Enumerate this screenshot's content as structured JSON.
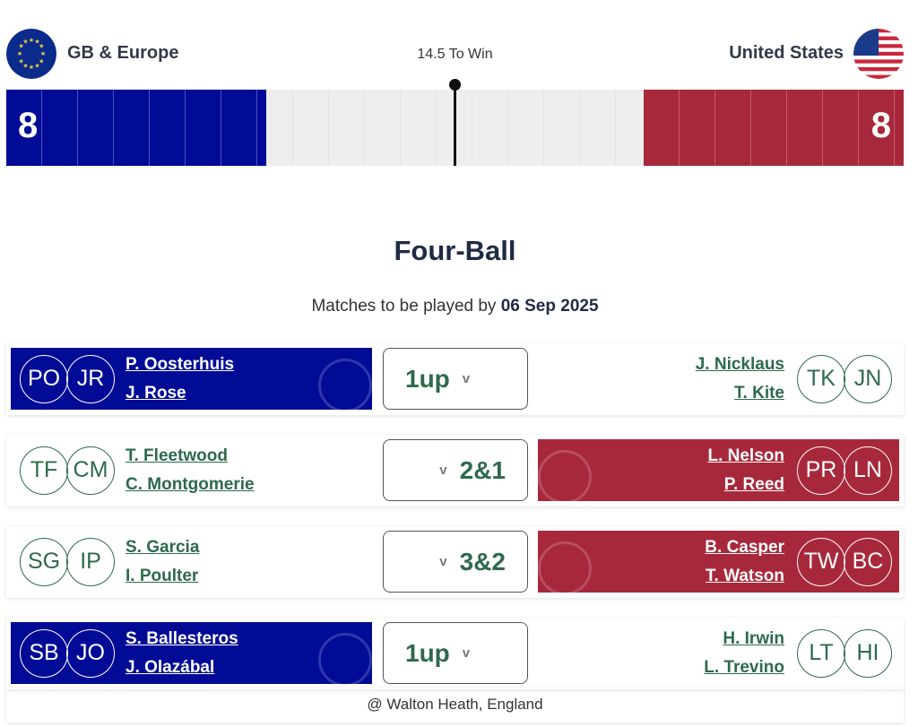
{
  "header": {
    "left_team": "GB & Europe",
    "right_team": "United States",
    "to_win": "14.5 To Win",
    "left_score": "8",
    "right_score": "8"
  },
  "colors": {
    "europe": "#020b96",
    "usa": "#a8283b",
    "accent_green": "#2d6a4b"
  },
  "section": {
    "title": "Four-Ball",
    "subtitle_prefix": "Matches to be played by",
    "date": "06 Sep 2025"
  },
  "matches": [
    {
      "left": {
        "initials": [
          "PO",
          "JR"
        ],
        "names": [
          "P. Oosterhuis",
          "J. Rose"
        ]
      },
      "right": {
        "initials": [
          "TK",
          "JN"
        ],
        "names": [
          "J. Nicklaus",
          "T. Kite"
        ]
      },
      "result": "1up",
      "leader": "europe"
    },
    {
      "left": {
        "initials": [
          "TF",
          "CM"
        ],
        "names": [
          "T. Fleetwood",
          "C. Montgomerie"
        ]
      },
      "right": {
        "initials": [
          "PR",
          "LN"
        ],
        "names": [
          "L. Nelson",
          "P. Reed"
        ]
      },
      "result": "2&1",
      "leader": "usa"
    },
    {
      "left": {
        "initials": [
          "SG",
          "IP"
        ],
        "names": [
          "S. Garcia",
          "I. Poulter"
        ]
      },
      "right": {
        "initials": [
          "TW",
          "BC"
        ],
        "names": [
          "B. Casper",
          "T. Watson"
        ]
      },
      "result": "3&2",
      "leader": "usa"
    },
    {
      "left": {
        "initials": [
          "SB",
          "JO"
        ],
        "names": [
          "S. Ballesteros",
          "J. Olazábal"
        ]
      },
      "right": {
        "initials": [
          "LT",
          "HI"
        ],
        "names": [
          "H. Irwin",
          "L. Trevino"
        ]
      },
      "result": "1up",
      "leader": "europe"
    }
  ],
  "footer": {
    "venue": "@ Walton Heath, England"
  },
  "icons": {
    "chevron": "v"
  }
}
